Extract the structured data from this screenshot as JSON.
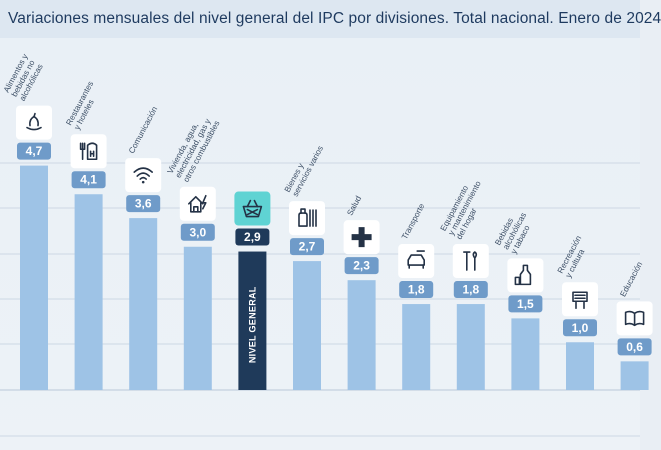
{
  "title": "Variaciones mensuales del nivel general del IPC por divisiones. Total nacional. Enero de 2024",
  "chart_data": {
    "type": "bar",
    "title": "Variaciones mensuales del nivel general del IPC por divisiones. Total nacional. Enero de 2024",
    "categories": [
      "Alimentos y bebidas no alcohólicas",
      "Restaurantes y hoteles",
      "Comunicación",
      "Vivienda, agua, electricidad, gas y otros combustibles",
      "NIVEL GENERAL",
      "Bienes y servicios varios",
      "Salud",
      "Transporte",
      "Equipamiento y mantenimiento del hogar",
      "Bebidas alcohólicas y tabaco",
      "Recreación y cultura",
      "Educación"
    ],
    "values": [
      4.7,
      4.1,
      3.6,
      3.0,
      2.9,
      2.7,
      2.3,
      1.8,
      1.8,
      1.5,
      1.0,
      0.6
    ],
    "value_labels": [
      "4,7",
      "4,1",
      "3,6",
      "3,0",
      "2,9",
      "2,7",
      "2,3",
      "1,8",
      "1,8",
      "1,5",
      "1,0",
      "0,6"
    ],
    "highlight": "NIVEL GENERAL",
    "icons": [
      "food-icon",
      "restaurant-icon",
      "wifi-icon",
      "house-icon",
      "basket-icon",
      "goods-icon",
      "health-cross-icon",
      "car-icon",
      "tools-icon",
      "bottle-icon",
      "recreation-icon",
      "book-icon"
    ],
    "label_lines": [
      [
        "Alimentos y",
        "bebidas no",
        "alcohólicas"
      ],
      [
        "Restaurantes",
        "y hoteles"
      ],
      [
        "Comunicación"
      ],
      [
        "Vivienda, agua,",
        "electricidad, gas y",
        "otros combustibles"
      ],
      [],
      [
        "Bienes y",
        "servicios varios"
      ],
      [
        "Salud"
      ],
      [
        "Transporte"
      ],
      [
        "Equipamiento",
        "y mantenimiento",
        "del hogar"
      ],
      [
        "Bebidas",
        "alcohólicas",
        "y tabaco"
      ],
      [
        "Recreación",
        "y cultura"
      ],
      [
        "Educación"
      ]
    ],
    "colors": {
      "bar": "#9ec3e6",
      "highlight_bar": "#1f3a5a",
      "value_box": "#6f9bc9",
      "icon_box_highlight": "#5fd3d3"
    },
    "xlabel": "",
    "ylabel": "",
    "ylim": [
      0,
      5.3
    ],
    "grid": true
  }
}
